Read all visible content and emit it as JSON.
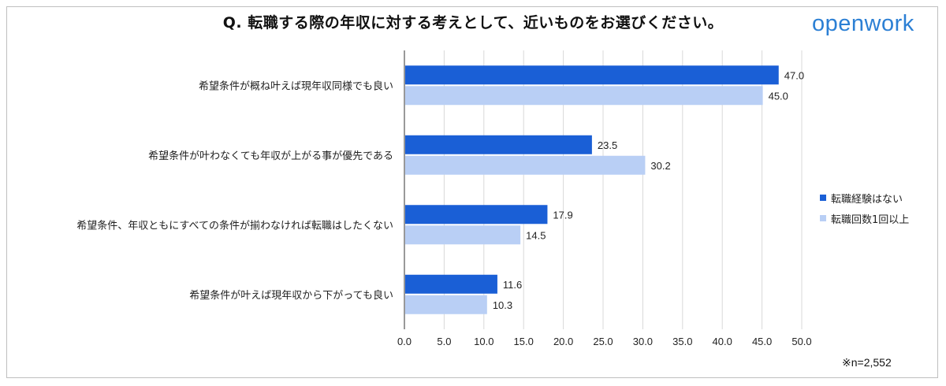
{
  "title": "Q. 転職する際の年収に対する考えとして、近いものをお選びください。",
  "logo": "openwork",
  "note": "※n=2,552",
  "colors": {
    "series1": "#1a5fd6",
    "series2": "#b9cff5",
    "grid": "#d9d9d9",
    "axis": "#333333"
  },
  "chart_data": {
    "type": "bar",
    "orientation": "horizontal",
    "title": "Q. 転職する際の年収に対する考えとして、近いものをお選びください。",
    "categories": [
      "希望条件が概ね叶えば現年収同様でも良い",
      "希望条件が叶わなくても年収が上がる事が優先である",
      "希望条件、年収ともにすべての条件が揃わなければ転職はしたくない",
      "希望条件が叶えば現年収から下がっても良い"
    ],
    "series": [
      {
        "name": "転職経験はない",
        "values": [
          47.0,
          23.5,
          17.9,
          11.6
        ],
        "labels": [
          "47.0",
          "23.5",
          "17.9",
          "11.6"
        ]
      },
      {
        "name": "転職回数1回以上",
        "values": [
          45.0,
          30.2,
          14.5,
          10.3
        ],
        "labels": [
          "45.0",
          "30.2",
          "14.5",
          "10.3"
        ]
      }
    ],
    "xlim": [
      0,
      50
    ],
    "ticks": [
      "0.0",
      "5.0",
      "10.0",
      "15.0",
      "20.0",
      "25.0",
      "30.0",
      "35.0",
      "40.0",
      "45.0",
      "50.0"
    ],
    "grid": true,
    "legend_position": "right"
  }
}
